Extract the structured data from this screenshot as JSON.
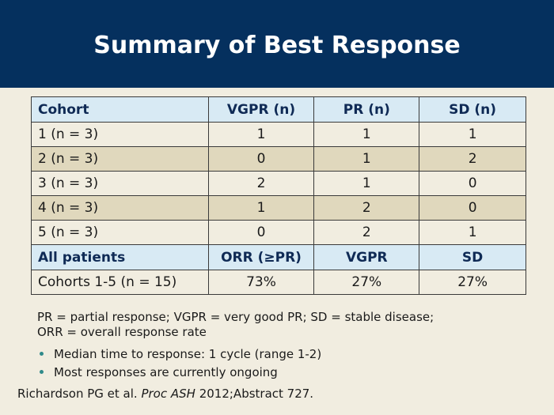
{
  "slide": {
    "title": "Summary of Best Response"
  },
  "table": {
    "header": [
      "Cohort",
      "VGPR (n)",
      "PR (n)",
      "SD (n)"
    ],
    "rows": [
      [
        "1 (n = 3)",
        "1",
        "1",
        "1"
      ],
      [
        "2 (n = 3)",
        "0",
        "1",
        "2"
      ],
      [
        "3 (n = 3)",
        "2",
        "1",
        "0"
      ],
      [
        "4 (n = 3)",
        "1",
        "2",
        "0"
      ],
      [
        "5 (n = 3)",
        "0",
        "2",
        "1"
      ]
    ],
    "subheader": [
      "All patients",
      "ORR (≥PR)",
      "VGPR",
      "SD"
    ],
    "summary_row": [
      "Cohorts 1-5 (n = 15)",
      "73%",
      "27%",
      "27%"
    ]
  },
  "footnote": {
    "line1": "PR = partial response; VGPR = very good PR; SD = stable disease;",
    "line2": "ORR = overall response rate"
  },
  "bullets": [
    "Median time to response: 1 cycle (range 1-2)",
    "Most responses are currently ongoing"
  ],
  "citation": {
    "authors": "Richardson PG et al.",
    "journal": "Proc ASH",
    "rest": "2012;Abstract 727."
  },
  "colors": {
    "title_bar": "#05305e",
    "background": "#f1ede0",
    "header_row": "#d8eaf4",
    "alt_row": "#e0d8bd",
    "bullet": "#2f8a8a"
  },
  "icons": {
    "bullet": "bullet-dot-icon"
  }
}
